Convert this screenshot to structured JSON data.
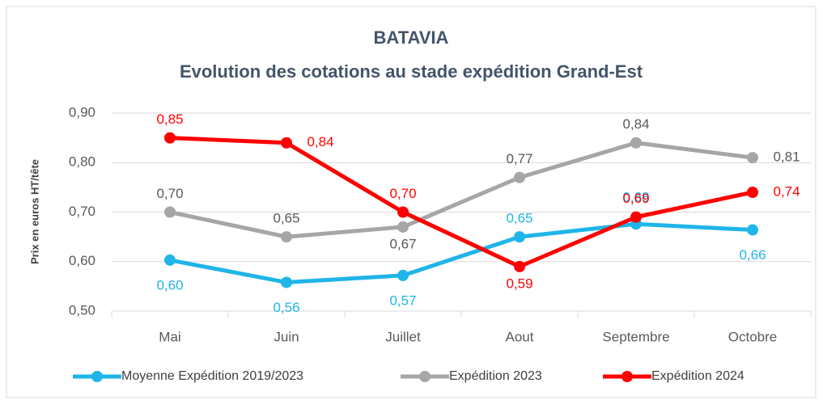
{
  "chart_data": {
    "type": "line",
    "title": "BATAVIA",
    "subtitle": "Evolution des cotations au stade expédition Grand-Est",
    "ylabel": "Prix en euros HT/tête",
    "categories": [
      "Mai",
      "Juin",
      "Juillet",
      "Aout",
      "Septembre",
      "Octobre"
    ],
    "series": [
      {
        "name": "Moyenne Expédition 2019/2023",
        "color": "#1fb5e8",
        "values": [
          0.603,
          0.558,
          0.572,
          0.65,
          0.676,
          0.664
        ],
        "value_labels": [
          "0,60",
          "0,56",
          "0,57",
          "0,65",
          "0,68",
          "0,66"
        ]
      },
      {
        "name": "Expédition 2023",
        "color": "#a6a6a6",
        "values": [
          0.7,
          0.65,
          0.67,
          0.77,
          0.84,
          0.81
        ],
        "value_labels": [
          "0,70",
          "0,65",
          "0,67",
          "0,77",
          "0,84",
          "0,81"
        ]
      },
      {
        "name": "Expédition 2024",
        "color": "#ff0000",
        "values": [
          0.85,
          0.84,
          0.7,
          0.59,
          0.69,
          0.74
        ],
        "value_labels": [
          "0,85",
          "0,84",
          "0,70",
          "0,59",
          "0,69",
          "0,74"
        ]
      }
    ],
    "ylim": [
      0.5,
      0.9
    ],
    "yticks": [
      {
        "value": 0.5,
        "label": "0,50"
      },
      {
        "value": 0.6,
        "label": "0,60"
      },
      {
        "value": 0.7,
        "label": "0,70"
      },
      {
        "value": 0.8,
        "label": "0,80"
      },
      {
        "value": 0.9,
        "label": "0,90"
      }
    ],
    "grid": true,
    "legend": "bottom"
  }
}
